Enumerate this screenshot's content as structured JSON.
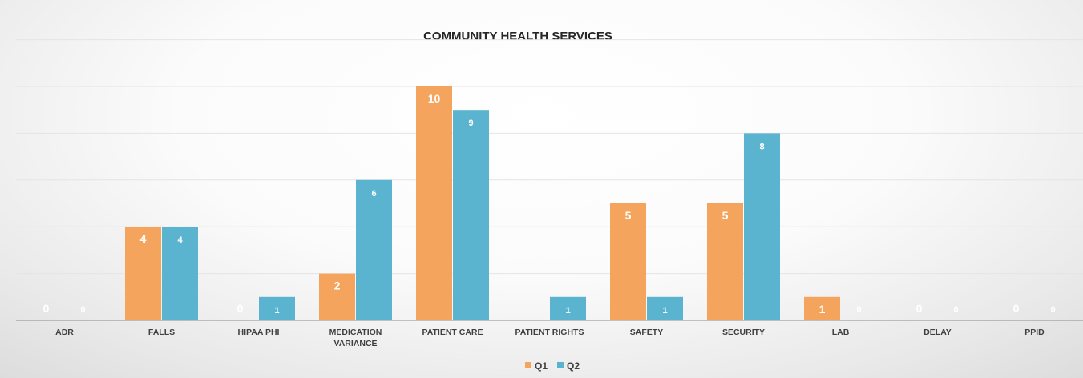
{
  "chart_data": {
    "type": "bar",
    "title": "COMMUNITY HEALTH SERVICES",
    "xlabel": "",
    "ylabel": "",
    "categories": [
      [
        "ADR"
      ],
      [
        "FALLS"
      ],
      [
        "HIPAA PHI"
      ],
      [
        "MEDICATION",
        "VARIANCE"
      ],
      [
        "PATIENT CARE"
      ],
      [
        "PATIENT RIGHTS"
      ],
      [
        "SAFETY"
      ],
      [
        "SECURITY"
      ],
      [
        "LAB"
      ],
      [
        "DELAY"
      ],
      [
        "PPID"
      ]
    ],
    "series": [
      {
        "name": "Q1",
        "color": "#f5a45d",
        "values": [
          0,
          4,
          0,
          2,
          10,
          null,
          5,
          5,
          1,
          0,
          0
        ]
      },
      {
        "name": "Q2",
        "color": "#5ab4cf",
        "values": [
          0,
          4,
          1,
          6,
          9,
          1,
          1,
          8,
          0,
          0,
          0
        ]
      }
    ],
    "ylim": [
      0,
      10
    ],
    "y_gridline_step": 2,
    "y_axis_visible": false,
    "grid": true,
    "legend": "bottom-center"
  }
}
